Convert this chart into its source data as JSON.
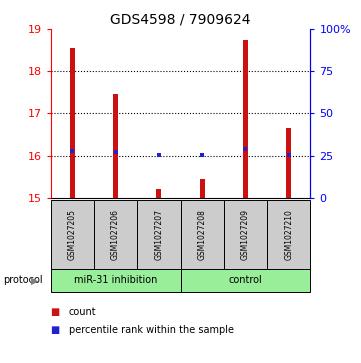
{
  "title": "GDS4598 / 7909624",
  "samples": [
    "GSM1027205",
    "GSM1027206",
    "GSM1027207",
    "GSM1027208",
    "GSM1027209",
    "GSM1027210"
  ],
  "bar_tops": [
    18.55,
    17.45,
    15.2,
    15.45,
    18.75,
    16.65
  ],
  "bar_bottom": 15.0,
  "blue_markers": [
    16.12,
    16.08,
    16.02,
    16.02,
    16.15,
    16.02
  ],
  "ylim_left": [
    15,
    19
  ],
  "ylim_right": [
    0,
    100
  ],
  "yticks_left": [
    15,
    16,
    17,
    18,
    19
  ],
  "yticks_right": [
    0,
    25,
    50,
    75,
    100
  ],
  "yticklabels_right": [
    "0",
    "25",
    "50",
    "75",
    "100%"
  ],
  "bar_color": "#cc1111",
  "blue_color": "#2222cc",
  "group_labels": [
    "miR-31 inhibition",
    "control"
  ],
  "protocol_label": "protocol",
  "legend_count": "count",
  "legend_percentile": "percentile rank within the sample",
  "sample_box_color": "#cccccc",
  "protocol_box_color": "#99ee99",
  "grid_lines": [
    16,
    17,
    18
  ],
  "bar_width": 0.12
}
